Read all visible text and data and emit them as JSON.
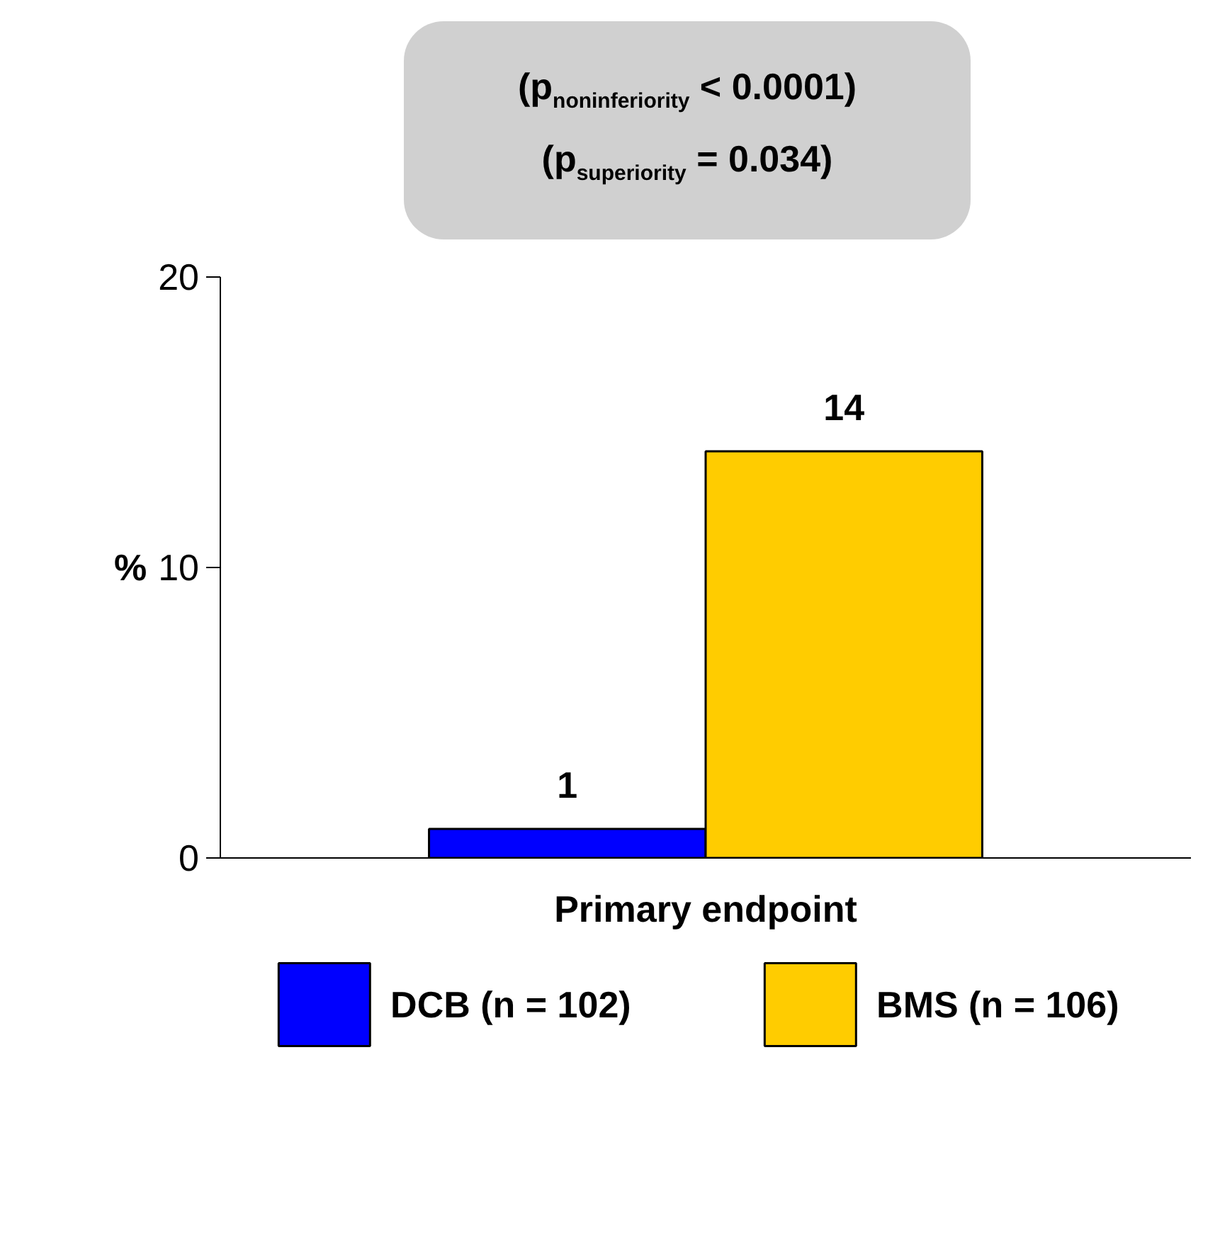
{
  "chart_data": {
    "type": "bar",
    "categories": [
      "Primary endpoint"
    ],
    "ylabel": "%",
    "ylim": [
      0,
      20
    ],
    "yticks": [
      0,
      10,
      20
    ],
    "grid": false,
    "legend": "bottom",
    "data_labels": true,
    "series": [
      {
        "name": "DCB (n = 102)",
        "color": "#0000ff",
        "values": [
          1
        ]
      },
      {
        "name": "BMS (n = 106)",
        "color": "#ffcc00",
        "values": [
          14
        ]
      }
    ],
    "annotations": [
      "(p$_{noninferiority}$ < 0.0001)",
      "(p$_{superiority}$ = 0.034)"
    ]
  }
}
